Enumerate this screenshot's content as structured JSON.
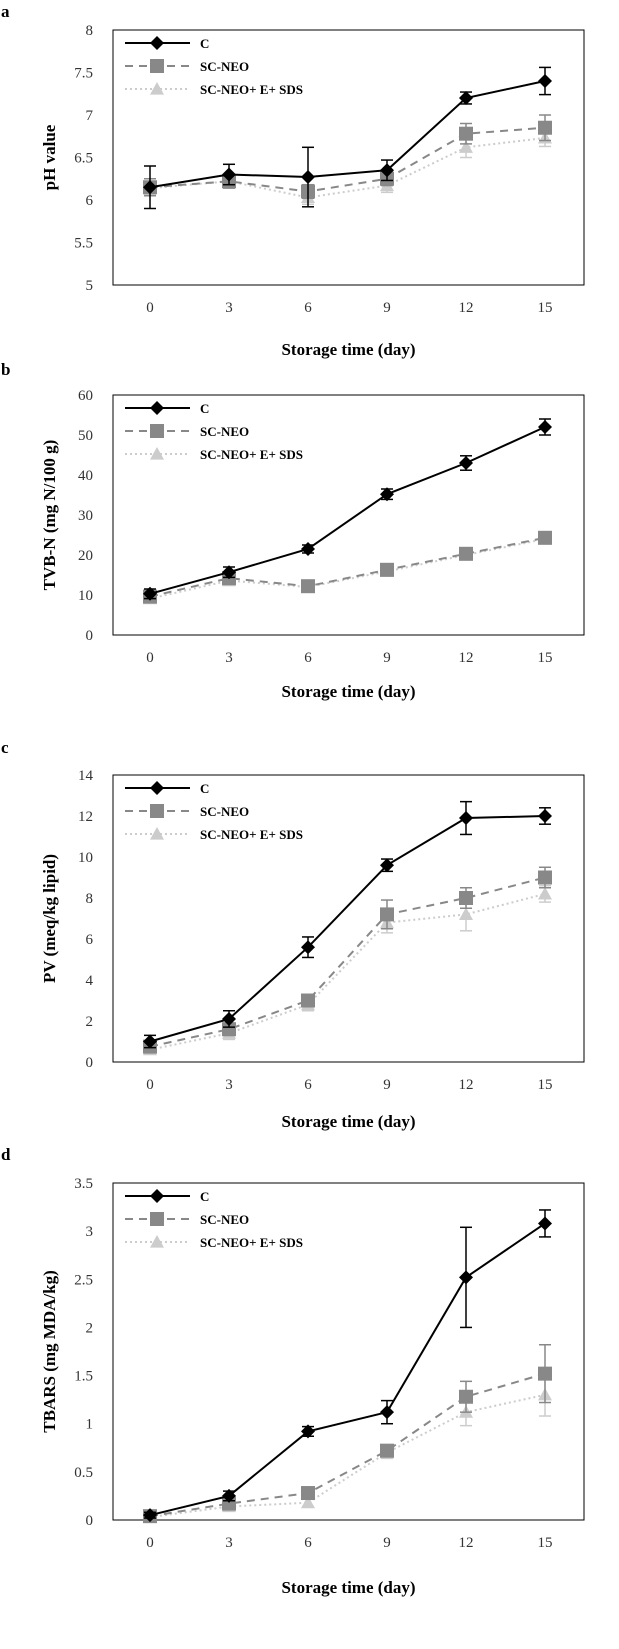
{
  "chart_data": [
    {
      "type": "line",
      "panel_label": "a",
      "xlabel": "Storage time (day)",
      "ylabel": "pH value",
      "categories": [
        "0",
        "3",
        "6",
        "9",
        "12",
        "15"
      ],
      "ylim": [
        5,
        8
      ],
      "yticks": [
        "5",
        "5.5",
        "6",
        "6.5",
        "7",
        "7.5",
        "8"
      ],
      "legend_position": "top-left",
      "series": [
        {
          "name": "C",
          "values": [
            6.15,
            6.3,
            6.27,
            6.35,
            7.2,
            7.4
          ],
          "errors": [
            0.25,
            0.12,
            0.35,
            0.12,
            0.07,
            0.16
          ]
        },
        {
          "name": "SC-NEO",
          "values": [
            6.15,
            6.22,
            6.1,
            6.25,
            6.78,
            6.85
          ],
          "errors": [
            0.1,
            0.08,
            0.08,
            0.08,
            0.12,
            0.15
          ]
        },
        {
          "name": "SC-NEO+ E+ SDS",
          "values": [
            6.14,
            6.22,
            6.03,
            6.17,
            6.62,
            6.73
          ],
          "errors": [
            0.08,
            0.08,
            0.08,
            0.08,
            0.12,
            0.1
          ]
        }
      ]
    },
    {
      "type": "line",
      "panel_label": "b",
      "xlabel": "Storage time (day)",
      "ylabel": "TVB-N (mg N/100 g)",
      "categories": [
        "0",
        "3",
        "6",
        "9",
        "12",
        "15"
      ],
      "ylim": [
        0,
        60
      ],
      "yticks": [
        "0",
        "10",
        "20",
        "30",
        "40",
        "50",
        "60"
      ],
      "legend_position": "top-left",
      "series": [
        {
          "name": "C",
          "values": [
            10.3,
            15.7,
            21.5,
            35.2,
            43,
            52
          ],
          "errors": [
            1.2,
            1.3,
            1.0,
            1.3,
            1.8,
            2.0
          ]
        },
        {
          "name": "SC-NEO",
          "values": [
            9.6,
            14.2,
            12.2,
            16.3,
            20.3,
            24.3
          ],
          "errors": [
            0.8,
            1.0,
            0.9,
            1.0,
            1.0,
            1.0
          ]
        },
        {
          "name": "SC-NEO+ E+ SDS",
          "values": [
            9.1,
            13.6,
            12,
            15.9,
            20,
            24
          ],
          "errors": [
            0.8,
            1.0,
            0.9,
            1.0,
            1.0,
            1.0
          ]
        }
      ]
    },
    {
      "type": "line",
      "panel_label": "c",
      "xlabel": "Storage time (day)",
      "ylabel": "PV (meq/kg lipid)",
      "categories": [
        "0",
        "3",
        "6",
        "9",
        "12",
        "15"
      ],
      "ylim": [
        0,
        14
      ],
      "yticks": [
        "0",
        "2",
        "4",
        "6",
        "8",
        "10",
        "12",
        "14"
      ],
      "legend_position": "top-left",
      "series": [
        {
          "name": "C",
          "values": [
            1.0,
            2.1,
            5.6,
            9.6,
            11.9,
            12
          ],
          "errors": [
            0.3,
            0.4,
            0.5,
            0.3,
            0.8,
            0.4
          ]
        },
        {
          "name": "SC-NEO",
          "values": [
            0.75,
            1.6,
            3.0,
            7.2,
            8.0,
            9.0
          ],
          "errors": [
            0.2,
            0.3,
            0.3,
            0.7,
            0.5,
            0.5
          ]
        },
        {
          "name": "SC-NEO+ E+ SDS",
          "values": [
            0.6,
            1.4,
            2.8,
            6.8,
            7.2,
            8.2
          ],
          "errors": [
            0.2,
            0.3,
            0.3,
            0.5,
            0.8,
            0.4
          ]
        }
      ]
    },
    {
      "type": "line",
      "panel_label": "d",
      "xlabel": "Storage time (day)",
      "ylabel": "TBARS (mg MDA/kg)",
      "categories": [
        "0",
        "3",
        "6",
        "9",
        "12",
        "15"
      ],
      "ylim": [
        0,
        3.5
      ],
      "yticks": [
        "0",
        "0.5",
        "1",
        "1.5",
        "2",
        "2.5",
        "3",
        "3.5"
      ],
      "legend_position": "top-left",
      "series": [
        {
          "name": "C",
          "values": [
            0.05,
            0.25,
            0.92,
            1.12,
            2.52,
            3.08
          ],
          "errors": [
            0.03,
            0.05,
            0.05,
            0.12,
            0.52,
            0.14
          ]
        },
        {
          "name": "SC-NEO",
          "values": [
            0.04,
            0.17,
            0.28,
            0.72,
            1.28,
            1.52
          ],
          "errors": [
            0.02,
            0.03,
            0.04,
            0.06,
            0.16,
            0.3
          ]
        },
        {
          "name": "SC-NEO+ E+ SDS",
          "values": [
            0.03,
            0.14,
            0.18,
            0.7,
            1.12,
            1.3
          ],
          "errors": [
            0.02,
            0.03,
            0.04,
            0.06,
            0.14,
            0.22
          ]
        }
      ]
    }
  ],
  "series_style": {
    "C": {
      "color": "#000000",
      "dash": "",
      "marker": "diamond",
      "stroke_width": 2
    },
    "SC-NEO": {
      "color": "#888888",
      "dash": "8,6",
      "marker": "square",
      "stroke_width": 2
    },
    "SC-NEO+ E+ SDS": {
      "color": "#cccccc",
      "dash": "2,3",
      "marker": "triangle",
      "stroke_width": 2
    }
  }
}
